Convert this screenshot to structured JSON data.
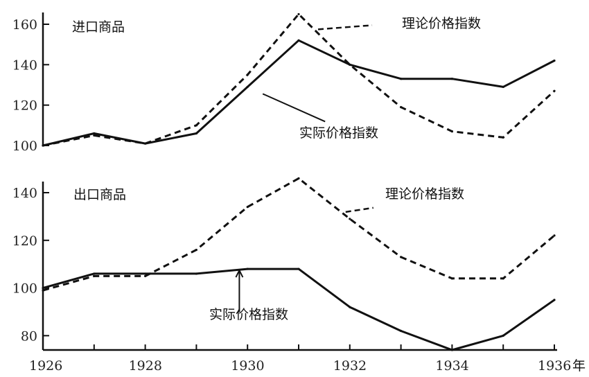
{
  "chart_data": [
    {
      "type": "line",
      "title": "进口商品",
      "x": [
        1926,
        1927,
        1928,
        1929,
        1930,
        1931,
        1932,
        1933,
        1934,
        1935,
        1936
      ],
      "ylim": [
        100,
        160
      ],
      "yticks": [
        100,
        120,
        140,
        160
      ],
      "series": [
        {
          "name": "实际价格指数",
          "style": "solid",
          "values": [
            100,
            106,
            101,
            106,
            129,
            152,
            140,
            133,
            133,
            129,
            142
          ]
        },
        {
          "name": "理论价格指数",
          "style": "dashed",
          "values": [
            100,
            105,
            101,
            110,
            135,
            165,
            140,
            119,
            107,
            104,
            127
          ]
        }
      ]
    },
    {
      "type": "line",
      "title": "出口商品",
      "x": [
        1926,
        1927,
        1928,
        1929,
        1930,
        1931,
        1932,
        1933,
        1934,
        1935,
        1936
      ],
      "ylim": [
        74,
        140
      ],
      "yticks": [
        80,
        100,
        120,
        140
      ],
      "series": [
        {
          "name": "实际价格指数",
          "style": "solid",
          "values": [
            100,
            106,
            106,
            106,
            108,
            108,
            92,
            82,
            74,
            80,
            95
          ]
        },
        {
          "name": "理论价格指数",
          "style": "dashed",
          "values": [
            99,
            105,
            105,
            116,
            134,
            146,
            129,
            113,
            104,
            104,
            122
          ]
        }
      ]
    }
  ],
  "x_axis": {
    "tick_labels": [
      "1926",
      "1928",
      "1930",
      "1932",
      "1934",
      "1936"
    ],
    "unit": "年"
  }
}
